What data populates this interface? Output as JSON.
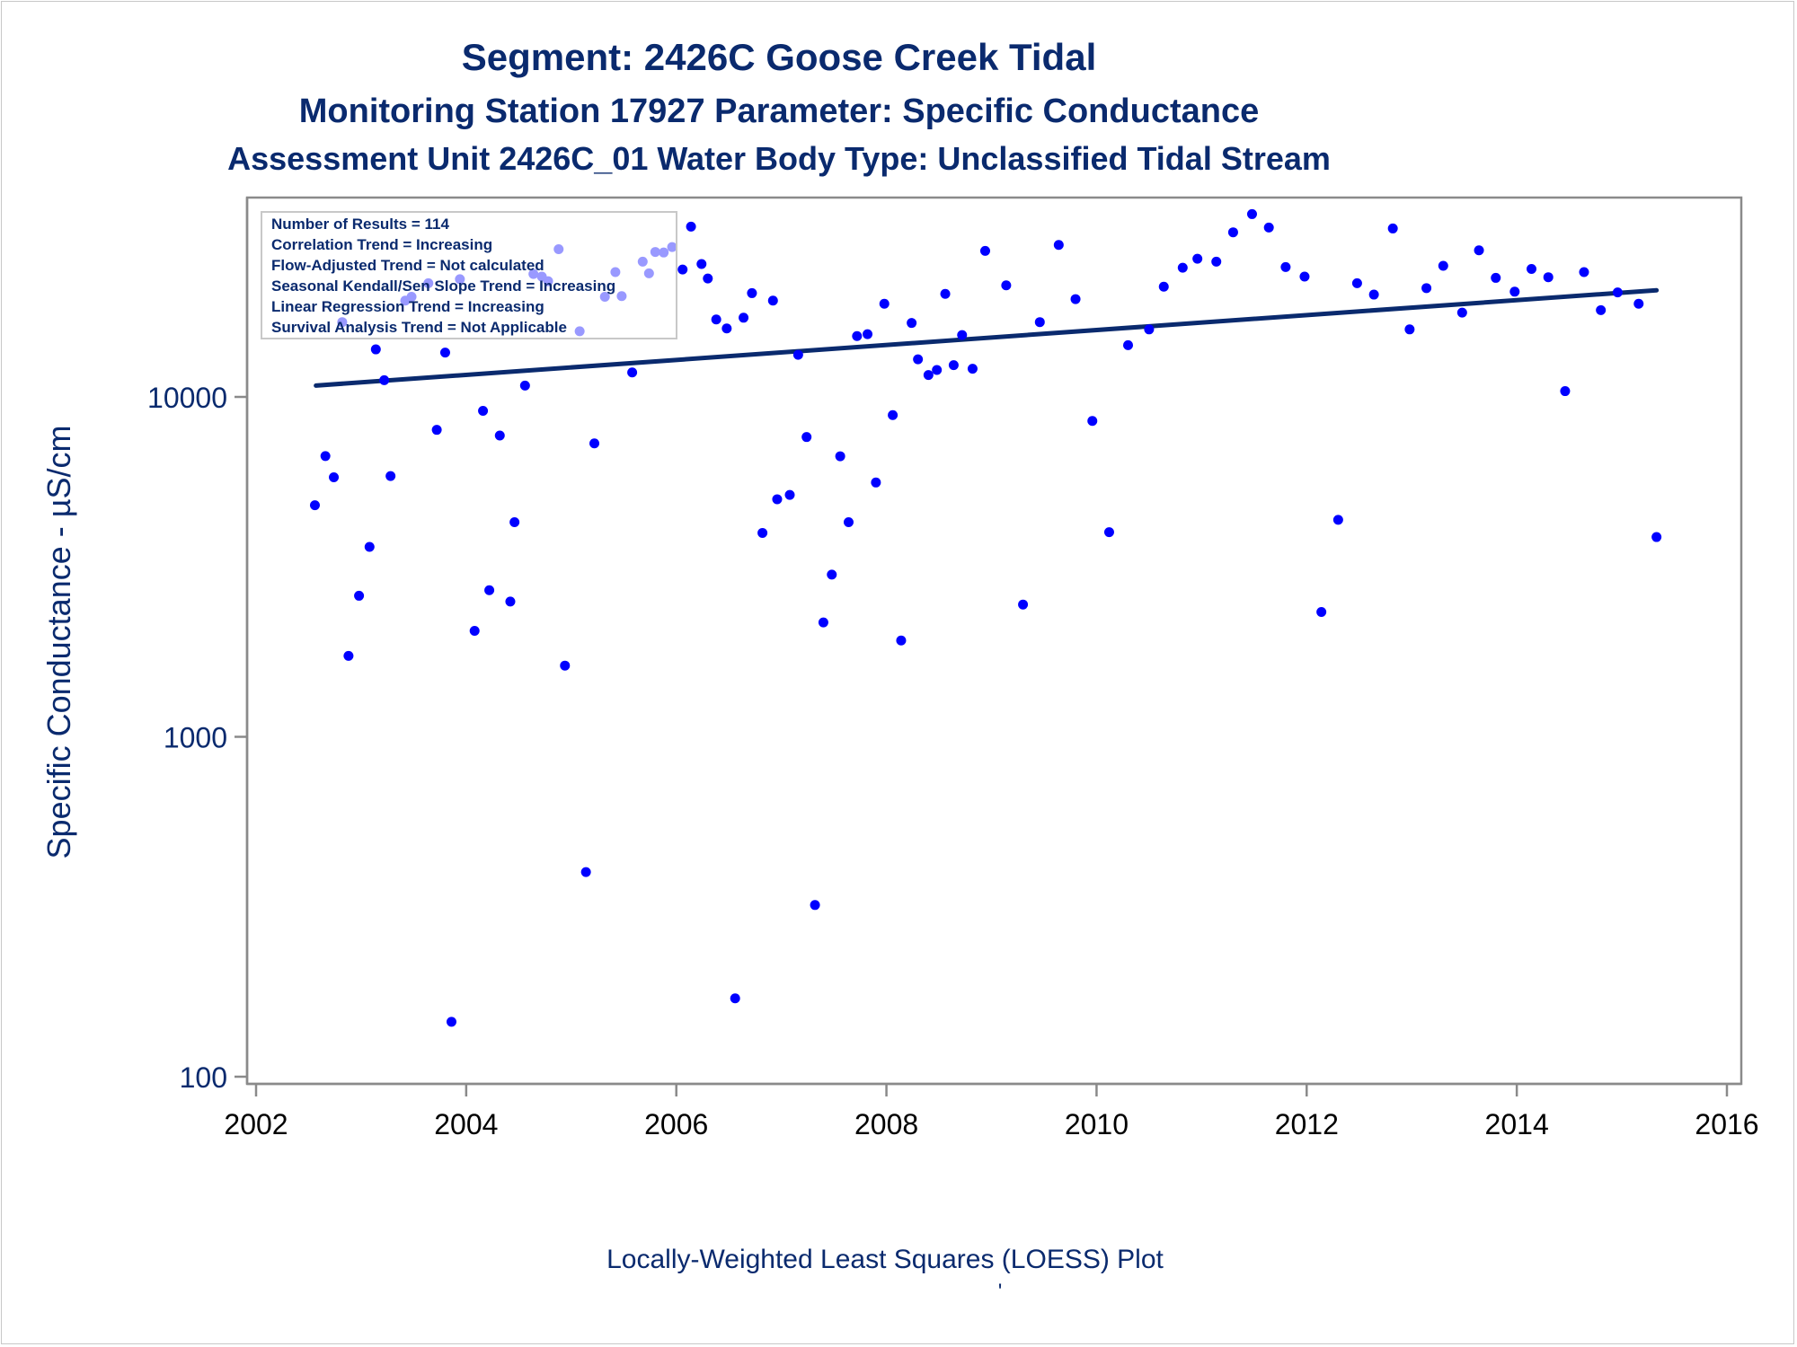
{
  "chart_data": {
    "type": "scatter",
    "title": "Segment: 2426C  Goose Creek Tidal",
    "subtitle": "Monitoring Station 17927 Parameter: Specific Conductance",
    "subtitle2": "Assessment Unit 2426C_01   Water Body Type: Unclassified Tidal Stream",
    "xlabel": "Locally-Weighted Least Squares (LOESS) Plot",
    "footnote": "'",
    "ylabel": "Specific Conductance -  µS/cm",
    "yscale": "log",
    "xlim": [
      2002,
      2016
    ],
    "ylim": [
      100,
      30000
    ],
    "x_ticks": [
      "2002",
      "2004",
      "2006",
      "2008",
      "2010",
      "2012",
      "2014",
      "2016"
    ],
    "y_ticks": [
      "100",
      "1000",
      "10000"
    ],
    "grid": false,
    "legend_box": {
      "placement": "top-left",
      "lines": [
        "Number of Results = 114",
        "Correlation Trend = Increasing",
        "Flow-Adjusted Trend = Not calculated",
        "Seasonal Kendall/Sen Slope Trend = Increasing",
        "Linear Regression Trend = Increasing",
        "Survival Analysis Trend = Not Applicable"
      ]
    },
    "colors": {
      "points": "#0000ff",
      "trend": "#0a2a6e",
      "text": "#0a2a6e"
    },
    "trend_line": [
      [
        2002.57,
        10800
      ],
      [
        2015.33,
        20600
      ]
    ],
    "series": [
      {
        "x": [
          2002.56,
          2002.66,
          2002.74,
          2002.82,
          2002.88,
          2002.98,
          2003.08,
          2003.14,
          2003.22,
          2003.28,
          2003.42,
          2003.48,
          2003.64,
          2003.72,
          2003.8,
          2003.86,
          2003.94,
          2004.08,
          2004.16,
          2004.22,
          2004.32,
          2004.42,
          2004.46,
          2004.56,
          2004.64,
          2004.72,
          2004.78,
          2004.88,
          2004.94,
          2005.08,
          2005.14,
          2005.22,
          2005.32,
          2005.42,
          2005.48,
          2005.58,
          2005.68,
          2005.74,
          2005.8,
          2005.88,
          2005.96,
          2006.06,
          2006.14,
          2006.24,
          2006.3,
          2006.38,
          2006.48,
          2006.56,
          2006.64,
          2006.72,
          2006.82,
          2006.92,
          2006.96,
          2007.08,
          2007.16,
          2007.24,
          2007.32,
          2007.4,
          2007.48,
          2007.56,
          2007.64,
          2007.72,
          2007.82,
          2007.9,
          2007.98,
          2008.06,
          2008.14,
          2008.24,
          2008.3,
          2008.4,
          2008.48,
          2008.56,
          2008.64,
          2008.72,
          2008.82,
          2008.94,
          2009.14,
          2009.3,
          2009.46,
          2009.64,
          2009.8,
          2009.96,
          2010.12,
          2010.3,
          2010.5,
          2010.64,
          2010.82,
          2010.96,
          2011.14,
          2011.3,
          2011.48,
          2011.64,
          2011.8,
          2011.98,
          2012.14,
          2012.3,
          2012.48,
          2012.64,
          2012.82,
          2012.98,
          2013.14,
          2013.3,
          2013.48,
          2013.64,
          2013.8,
          2013.98,
          2014.14,
          2014.3,
          2014.46,
          2014.64,
          2014.8,
          2014.96,
          2015.16,
          2015.33
        ],
        "y": [
          4800,
          6700,
          5800,
          16600,
          1730,
          2600,
          3620,
          13800,
          11200,
          5850,
          19200,
          19700,
          21600,
          8000,
          13500,
          145,
          22200,
          2050,
          9100,
          2700,
          7700,
          2500,
          4280,
          10800,
          23000,
          22600,
          21900,
          27200,
          1620,
          15600,
          400,
          7300,
          19700,
          23300,
          19800,
          11800,
          25000,
          23100,
          26700,
          26600,
          27600,
          23700,
          31700,
          24600,
          22300,
          16900,
          15900,
          170,
          17100,
          20200,
          3980,
          19200,
          5000,
          5150,
          13300,
          7620,
          320,
          2170,
          3000,
          6690,
          4280,
          15100,
          15300,
          5600,
          18800,
          8840,
          1920,
          16500,
          12900,
          11600,
          12000,
          20100,
          12400,
          15200,
          12100,
          26900,
          21300,
          2450,
          16600,
          28000,
          19400,
          8500,
          4000,
          14200,
          15800,
          21100,
          24000,
          25500,
          25000,
          30500,
          34500,
          31500,
          24100,
          22600,
          2330,
          4350,
          21600,
          20000,
          31300,
          15800,
          20900,
          24300,
          17700,
          27000,
          22400,
          20400,
          23800,
          22500,
          10400,
          23300,
          18000,
          20300,
          18800,
          3870
        ]
      }
    ]
  }
}
